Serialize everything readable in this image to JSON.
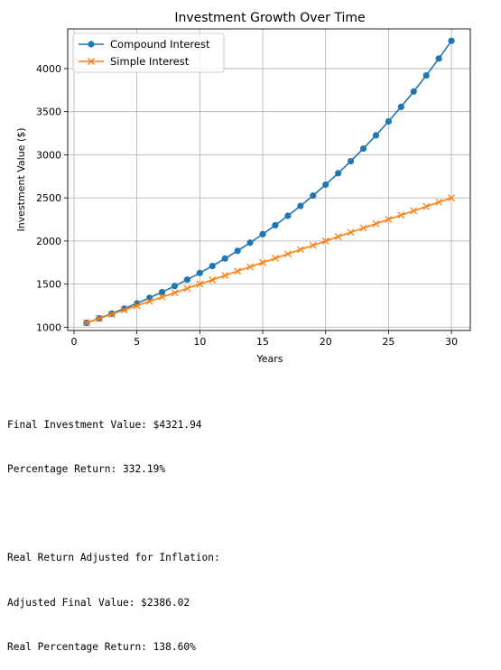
{
  "chart_data": {
    "type": "line",
    "title": "Investment Growth Over Time",
    "xlabel": "Years",
    "ylabel": "Investment Value ($)",
    "x": [
      1,
      2,
      3,
      4,
      5,
      6,
      7,
      8,
      9,
      10,
      11,
      12,
      13,
      14,
      15,
      16,
      17,
      18,
      19,
      20,
      21,
      22,
      23,
      24,
      25,
      26,
      27,
      28,
      29,
      30
    ],
    "xlim": [
      -0.5,
      31.5
    ],
    "ylim": [
      962,
      4460
    ],
    "xticks": [
      0,
      5,
      10,
      15,
      20,
      25,
      30
    ],
    "yticks": [
      1000,
      1500,
      2000,
      2500,
      3000,
      3500,
      4000
    ],
    "grid": true,
    "legend_position": "top-left",
    "series": [
      {
        "name": "Compound Interest",
        "color": "#1f77b4",
        "marker": "circle",
        "values": [
          1050.0,
          1102.5,
          1157.63,
          1215.51,
          1276.28,
          1340.1,
          1407.1,
          1477.46,
          1551.33,
          1628.89,
          1710.34,
          1795.86,
          1885.65,
          1979.93,
          2078.93,
          2182.87,
          2292.02,
          2406.62,
          2526.95,
          2653.3,
          2785.96,
          2925.26,
          3071.52,
          3225.1,
          3386.35,
          3555.67,
          3733.46,
          3920.13,
          4116.14,
          4321.94
        ]
      },
      {
        "name": "Simple Interest",
        "color": "#ff7f0e",
        "marker": "x",
        "values": [
          1050,
          1100,
          1150,
          1200,
          1250,
          1300,
          1350,
          1400,
          1450,
          1500,
          1550,
          1600,
          1650,
          1700,
          1750,
          1800,
          1850,
          1900,
          1950,
          2000,
          2050,
          2100,
          2150,
          2200,
          2250,
          2300,
          2350,
          2400,
          2450,
          2500
        ]
      }
    ]
  },
  "output": {
    "line1": "Final Investment Value: $4321.94",
    "line2": "Percentage Return: 332.19%",
    "line3": "Real Return Adjusted for Inflation:",
    "line4": "Adjusted Final Value: $2386.02",
    "line5": "Real Percentage Return: 138.60%"
  }
}
